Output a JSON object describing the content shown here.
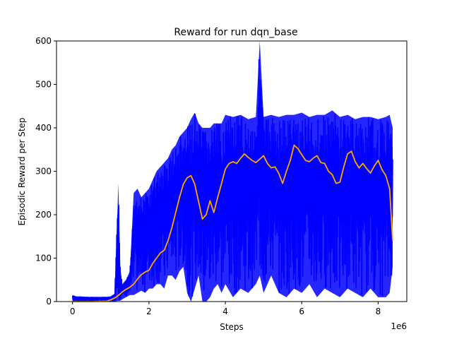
{
  "chart_data": {
    "type": "line",
    "title": "Reward for run dqn_base",
    "xlabel": "Steps",
    "ylabel": "Episodic Reward per Step",
    "x_offset_label": "1e6",
    "xlim": [
      -0.42,
      8.75
    ],
    "ylim": [
      0,
      600
    ],
    "x_ticks": [
      0,
      2,
      4,
      6,
      8
    ],
    "x_tick_labels": [
      "0",
      "2",
      "4",
      "6",
      "8"
    ],
    "y_ticks": [
      0,
      100,
      200,
      300,
      400,
      500,
      600
    ],
    "y_tick_labels": [
      "0",
      "100",
      "200",
      "300",
      "400",
      "500",
      "600"
    ],
    "grid": false,
    "legend": "none",
    "series": [
      {
        "role": "raw",
        "color": "#0000ff",
        "x": [
          0,
          0.1,
          0.2,
          0.4,
          0.6,
          0.8,
          0.9,
          1.0,
          1.1,
          1.2,
          1.25,
          1.3,
          1.4,
          1.5,
          1.6,
          1.7,
          1.8,
          1.9,
          2.0,
          2.1,
          2.2,
          2.3,
          2.4,
          2.5,
          2.6,
          2.7,
          2.8,
          2.9,
          3.0,
          3.1,
          3.2,
          3.3,
          3.4,
          3.5,
          3.6,
          3.7,
          3.8,
          3.9,
          4.0,
          4.2,
          4.4,
          4.6,
          4.8,
          4.9,
          5.0,
          5.2,
          5.4,
          5.6,
          5.8,
          6.0,
          6.2,
          6.4,
          6.6,
          6.8,
          7.0,
          7.2,
          7.4,
          7.6,
          7.8,
          8.0,
          8.2,
          8.3,
          8.38
        ],
        "y_low": [
          0,
          0,
          0,
          0,
          0,
          0,
          0,
          0,
          0,
          2,
          2,
          5,
          10,
          15,
          15,
          20,
          25,
          20,
          30,
          30,
          40,
          40,
          30,
          60,
          60,
          50,
          70,
          80,
          20,
          0,
          30,
          60,
          0,
          0,
          10,
          30,
          40,
          20,
          40,
          10,
          30,
          20,
          40,
          60,
          20,
          60,
          20,
          10,
          30,
          20,
          40,
          10,
          30,
          20,
          10,
          30,
          20,
          10,
          30,
          10,
          10,
          20,
          80
        ],
        "y_high": [
          15,
          12,
          12,
          11,
          11,
          11,
          11,
          12,
          18,
          272,
          80,
          40,
          50,
          70,
          250,
          260,
          240,
          250,
          260,
          280,
          300,
          310,
          320,
          330,
          350,
          360,
          380,
          390,
          400,
          420,
          435,
          410,
          400,
          400,
          400,
          410,
          410,
          410,
          430,
          425,
          430,
          420,
          425,
          600,
          425,
          430,
          425,
          430,
          430,
          435,
          425,
          430,
          430,
          440,
          425,
          430,
          420,
          425,
          425,
          420,
          425,
          430,
          400
        ]
      },
      {
        "role": "smoothed",
        "color": "#ffa500",
        "x": [
          0,
          0.5,
          0.9,
          1.0,
          1.1,
          1.2,
          1.3,
          1.4,
          1.5,
          1.6,
          1.7,
          1.8,
          1.9,
          2.0,
          2.1,
          2.2,
          2.3,
          2.4,
          2.5,
          2.6,
          2.7,
          2.8,
          2.9,
          3.0,
          3.1,
          3.2,
          3.3,
          3.4,
          3.5,
          3.6,
          3.7,
          3.8,
          3.9,
          4.0,
          4.1,
          4.2,
          4.3,
          4.4,
          4.5,
          4.6,
          4.7,
          4.8,
          4.9,
          5.0,
          5.1,
          5.2,
          5.3,
          5.4,
          5.5,
          5.6,
          5.7,
          5.8,
          5.9,
          6.0,
          6.1,
          6.2,
          6.3,
          6.4,
          6.5,
          6.6,
          6.7,
          6.8,
          6.9,
          7.0,
          7.1,
          7.2,
          7.3,
          7.4,
          7.5,
          7.6,
          7.7,
          7.8,
          7.9,
          8.0,
          8.1,
          8.2,
          8.3,
          8.38
        ],
        "y": [
          0,
          0,
          1,
          4,
          8,
          14,
          22,
          28,
          33,
          40,
          52,
          62,
          68,
          72,
          88,
          100,
          112,
          118,
          140,
          170,
          205,
          240,
          270,
          285,
          290,
          270,
          230,
          190,
          200,
          232,
          205,
          240,
          272,
          305,
          318,
          322,
          318,
          330,
          340,
          332,
          325,
          320,
          328,
          336,
          318,
          308,
          310,
          295,
          272,
          300,
          325,
          360,
          352,
          338,
          325,
          322,
          330,
          336,
          320,
          318,
          300,
          292,
          272,
          275,
          310,
          340,
          346,
          322,
          308,
          318,
          306,
          296,
          312,
          325,
          304,
          290,
          260,
          140
        ]
      }
    ]
  }
}
